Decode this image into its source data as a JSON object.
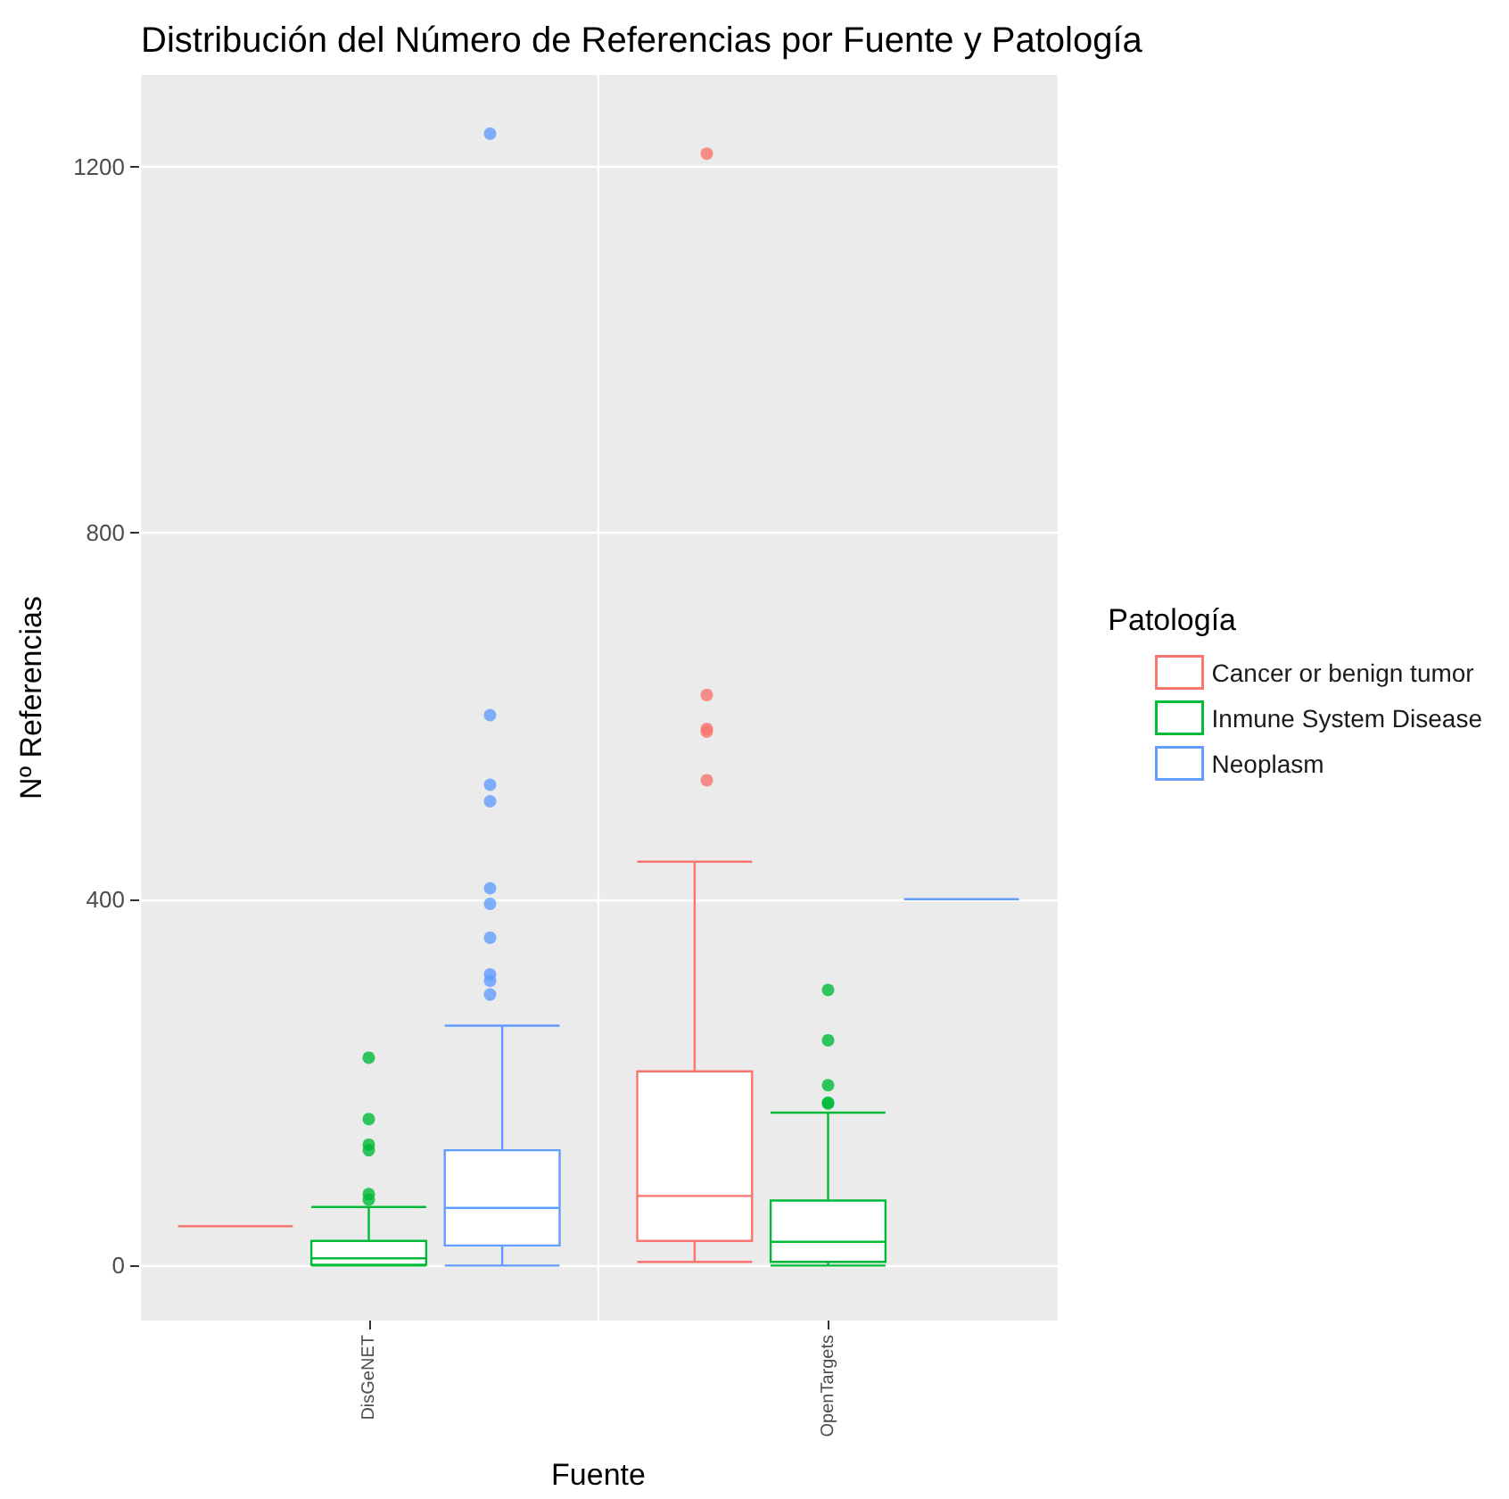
{
  "chart_data": {
    "type": "box",
    "title": "Distribución del Número de Referencias por Fuente y Patología",
    "xlabel": "Fuente",
    "ylabel": "Nº Referencias",
    "legend_title": "Patología",
    "categories": [
      "DisGeNET",
      "OpenTargets"
    ],
    "series": [
      {
        "name": "Cancer or benign tumor",
        "color": "#f8766d",
        "boxes": [
          {
            "low": 43,
            "q1": 43,
            "median": 43,
            "q3": 43,
            "high": 43
          },
          {
            "low": 4,
            "q1": 27,
            "median": 76,
            "q3": 212,
            "high": 441,
            "outliers": [
              530,
              583,
              586,
              623,
              1214
            ]
          }
        ]
      },
      {
        "name": "Inmune System Disease",
        "color": "#00ba38",
        "boxes": [
          {
            "low": 0,
            "q1": 1,
            "median": 8,
            "q3": 27,
            "high": 64,
            "outliers": [
              72,
              78,
              126,
              132,
              160,
              227
            ]
          },
          {
            "low": 0,
            "q1": 4,
            "median": 26,
            "q3": 71,
            "high": 167,
            "outliers": [
              177,
              178,
              197,
              246,
              301
            ]
          }
        ]
      },
      {
        "name": "Neoplasm",
        "color": "#619cff",
        "boxes": [
          {
            "low": 0,
            "q1": 22,
            "median": 63,
            "q3": 126,
            "high": 262,
            "outliers": [
              296,
              311,
              318,
              358,
              395,
              412,
              507,
              525,
              601,
              1236
            ]
          },
          {
            "low": 400,
            "q1": 400,
            "median": 400,
            "q3": 400,
            "high": 400
          }
        ]
      }
    ],
    "ylim": [
      -60,
      1300
    ],
    "yticks": [
      0,
      400,
      800,
      1200
    ],
    "grid": true,
    "legend": "right"
  }
}
